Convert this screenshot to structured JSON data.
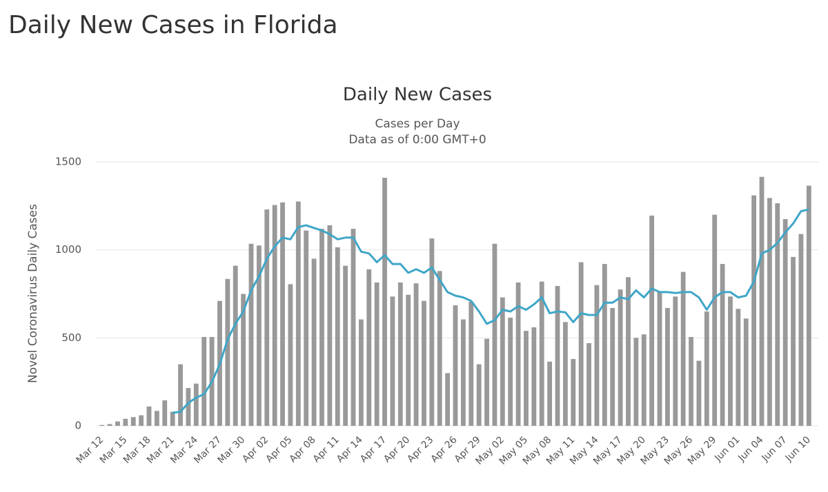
{
  "header": {
    "title": "Daily New Cases in Florida"
  },
  "chart_data": {
    "type": "bar",
    "title": "Daily New Cases",
    "subtitle": "Cases per Day",
    "note": "Data as of 0:00 GMT+0",
    "y_label": "Novel Coronavirus Daily Cases",
    "categories": [
      "Mar 12",
      null,
      null,
      "Mar 15",
      null,
      null,
      "Mar 18",
      null,
      null,
      "Mar 21",
      null,
      null,
      "Mar 24",
      null,
      null,
      "Mar 27",
      null,
      null,
      "Mar 30",
      null,
      null,
      "Apr 02",
      null,
      null,
      "Apr 05",
      null,
      null,
      "Apr 08",
      null,
      null,
      "Apr 11",
      null,
      null,
      "Apr 14",
      null,
      null,
      "Apr 17",
      null,
      null,
      "Apr 20",
      null,
      null,
      "Apr 23",
      null,
      null,
      "Apr 26",
      null,
      null,
      "Apr 29",
      null,
      null,
      "May 02",
      null,
      null,
      "May 05",
      null,
      null,
      "May 08",
      null,
      null,
      "May 11",
      null,
      null,
      "May 14",
      null,
      null,
      "May 17",
      null,
      null,
      "May 20",
      null,
      null,
      "May 23",
      null,
      null,
      "May 26",
      null,
      null,
      "May 29",
      null,
      null,
      "Jun 01",
      null,
      null,
      "Jun 04",
      null,
      null,
      "Jun 07",
      null,
      null,
      "Jun 10"
    ],
    "series": [
      {
        "type": "bar",
        "color": "#999999",
        "values": [
          5,
          10,
          25,
          40,
          50,
          60,
          110,
          85,
          145,
          80,
          350,
          215,
          240,
          505,
          505,
          710,
          835,
          910,
          750,
          1035,
          1025,
          1230,
          1255,
          1270,
          805,
          1275,
          1110,
          950,
          1120,
          1140,
          1015,
          910,
          1120,
          605,
          890,
          815,
          1410,
          735,
          815,
          745,
          810,
          710,
          1065,
          880,
          300,
          685,
          605,
          705,
          350,
          495,
          1035,
          730,
          615,
          815,
          540,
          560,
          820,
          365,
          795,
          590,
          380,
          930,
          470,
          800,
          920,
          670,
          775,
          845,
          500,
          520,
          1195,
          760,
          670,
          735,
          875,
          505,
          370,
          650,
          1200,
          920,
          735,
          665,
          610,
          1310,
          1415,
          1295,
          1265,
          1175,
          960,
          1090,
          1365
        ]
      },
      {
        "type": "line",
        "color": "#3fa6c8",
        "values": [
          null,
          null,
          null,
          null,
          null,
          null,
          null,
          null,
          null,
          75,
          80,
          130,
          160,
          180,
          250,
          350,
          490,
          580,
          650,
          770,
          850,
          950,
          1020,
          1070,
          1060,
          1130,
          1140,
          1125,
          1110,
          1090,
          1060,
          1070,
          1070,
          990,
          980,
          930,
          970,
          920,
          920,
          870,
          890,
          870,
          900,
          830,
          760,
          740,
          730,
          710,
          650,
          580,
          600,
          660,
          650,
          680,
          660,
          690,
          730,
          640,
          650,
          645,
          590,
          640,
          630,
          630,
          700,
          700,
          730,
          720,
          770,
          730,
          780,
          760,
          760,
          755,
          760,
          760,
          730,
          660,
          730,
          760,
          760,
          730,
          740,
          820,
          980,
          1000,
          1040,
          1100,
          1150,
          1220,
          1230
        ]
      }
    ],
    "ylim": [
      0,
      1500
    ],
    "yticks": [
      0,
      500,
      1000,
      1500
    ],
    "grid": true
  }
}
